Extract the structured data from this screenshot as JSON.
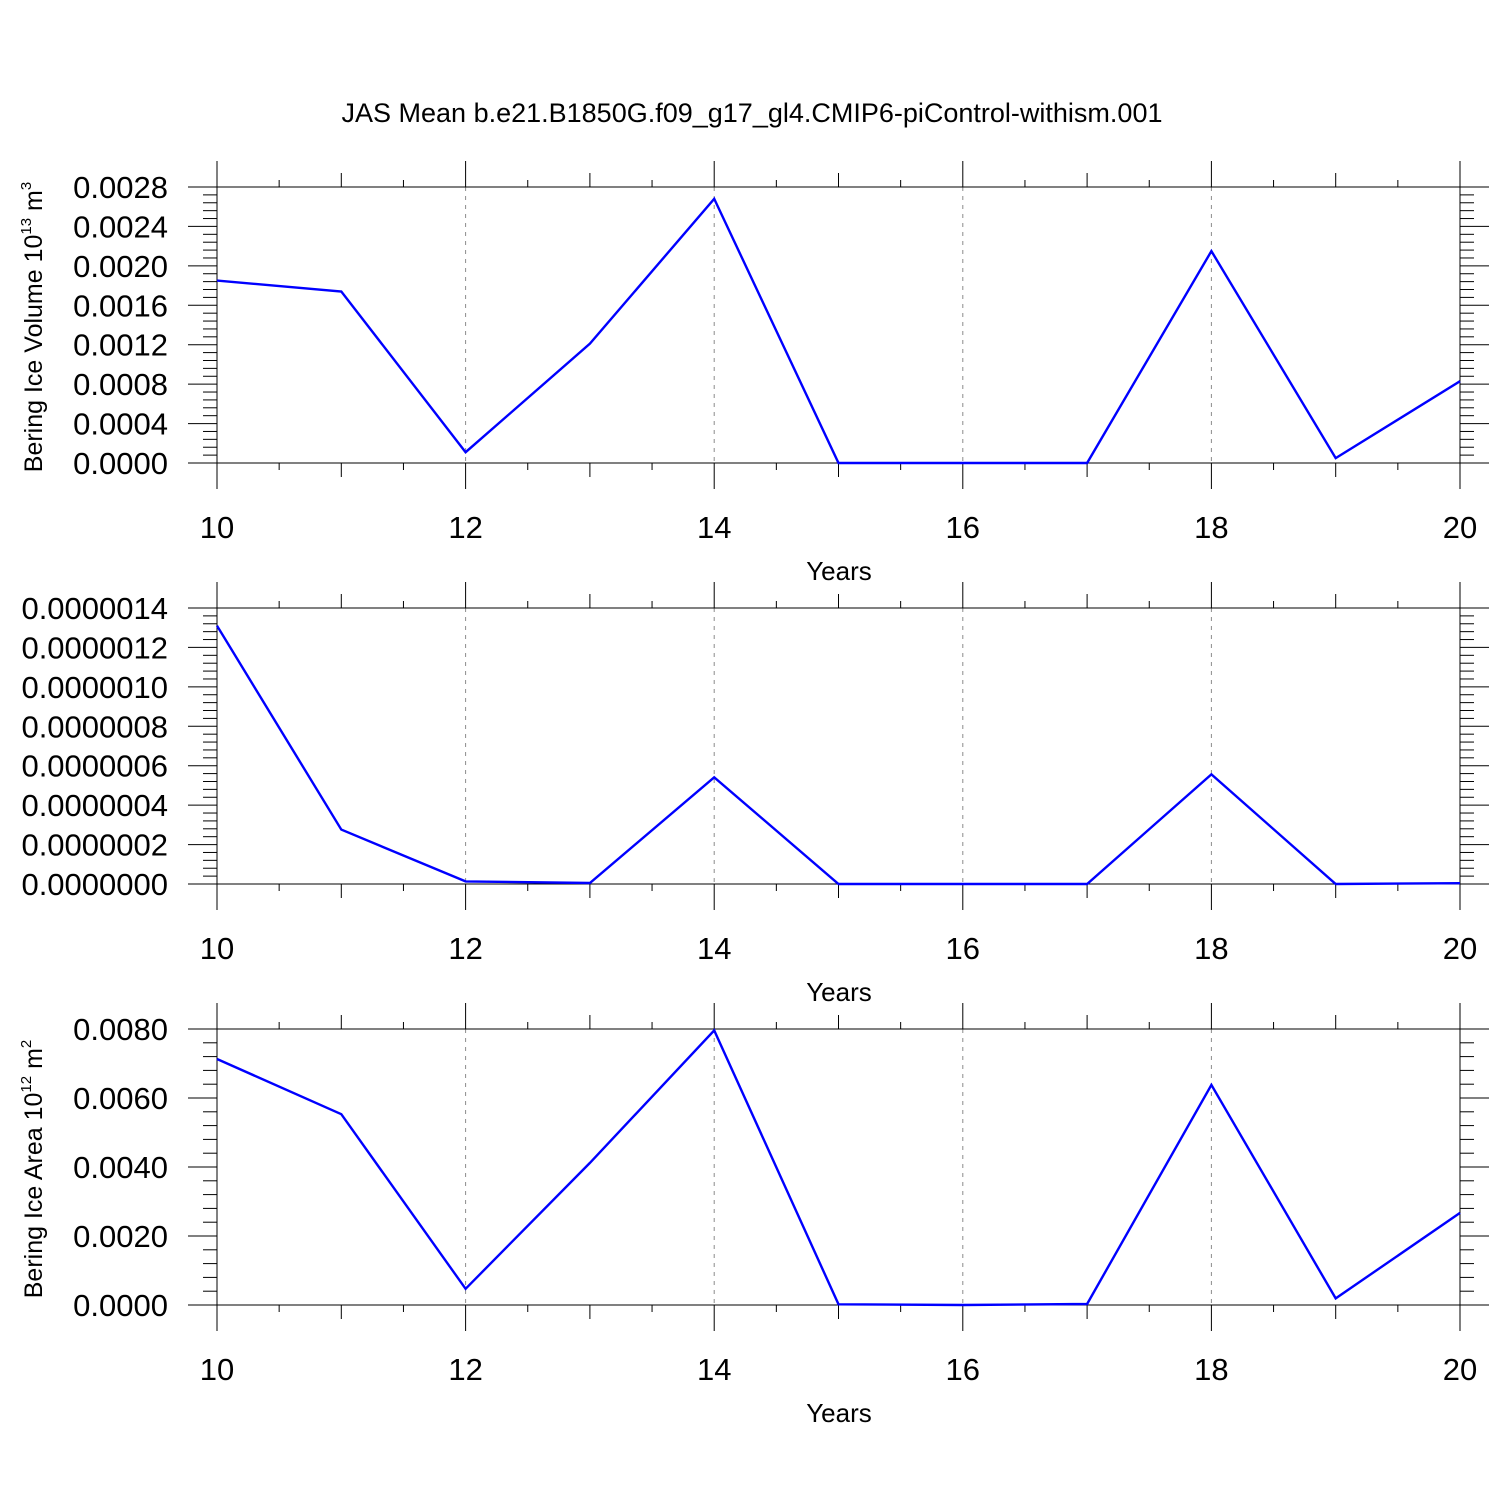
{
  "title": "JAS Mean b.e21.B1850G.f09_g17_gl4.CMIP6-piControl-withism.001",
  "colors": {
    "series": "#0000ff",
    "axis": "#000000",
    "grid": "#8c8c8c"
  },
  "chart_data": [
    {
      "type": "line",
      "xlabel": "Years",
      "ylabel": {
        "text": "Bering Ice Volume 10",
        "sup": "13",
        "unit": " m",
        "unit_sup": "3"
      },
      "xlim": [
        10,
        20
      ],
      "ylim": [
        0,
        0.0028
      ],
      "x_ticks": [
        "10",
        "12",
        "14",
        "16",
        "18",
        "20"
      ],
      "y_ticks": [
        "0.0000",
        "0.0004",
        "0.0008",
        "0.0012",
        "0.0016",
        "0.0020",
        "0.0024",
        "0.0028"
      ],
      "grid": "vertical dashed at 12, 14, 16, 18",
      "series": [
        {
          "x": [
            10,
            11,
            12,
            13,
            14,
            15,
            16,
            17,
            18,
            19,
            20
          ],
          "values": [
            0.00185,
            0.00174,
            0.00011,
            0.00121,
            0.00268,
            0.0,
            0.0,
            0.0,
            0.00215,
            5e-05,
            0.00083
          ]
        }
      ]
    },
    {
      "type": "line",
      "xlabel": "Years",
      "ylabel": null,
      "xlim": [
        10,
        20
      ],
      "ylim": [
        0,
        1.4e-06
      ],
      "x_ticks": [
        "10",
        "12",
        "14",
        "16",
        "18",
        "20"
      ],
      "y_ticks": [
        "0.0000000",
        "0.0000002",
        "0.0000004",
        "0.0000006",
        "0.0000008",
        "0.0000010",
        "0.0000012",
        "0.0000014"
      ],
      "grid": "vertical dashed at 12, 14, 16, 18",
      "series": [
        {
          "x": [
            10,
            11,
            12,
            13,
            14,
            15,
            16,
            17,
            18,
            19,
            20
          ],
          "values": [
            1.31e-06,
            2.76e-07,
            1.3e-08,
            5e-09,
            5.41e-07,
            0.0,
            0.0,
            0.0,
            5.56e-07,
            0.0,
            4e-09
          ]
        }
      ]
    },
    {
      "type": "line",
      "xlabel": "Years",
      "ylabel": {
        "text": "Bering Ice Area 10",
        "sup": "12",
        "unit": " m",
        "unit_sup": "2"
      },
      "xlim": [
        10,
        20
      ],
      "ylim": [
        0,
        0.008
      ],
      "x_ticks": [
        "10",
        "12",
        "14",
        "16",
        "18",
        "20"
      ],
      "y_ticks": [
        "0.0000",
        "0.0020",
        "0.0040",
        "0.0060",
        "0.0080"
      ],
      "grid": "vertical dashed at 12, 14, 16, 18",
      "series": [
        {
          "x": [
            10,
            11,
            12,
            13,
            14,
            15,
            16,
            17,
            18,
            19,
            20
          ],
          "values": [
            0.00713,
            0.00553,
            0.00047,
            0.00412,
            0.00796,
            2e-05,
            0.0,
            3e-05,
            0.00638,
            0.00019,
            0.00267
          ]
        }
      ]
    }
  ]
}
